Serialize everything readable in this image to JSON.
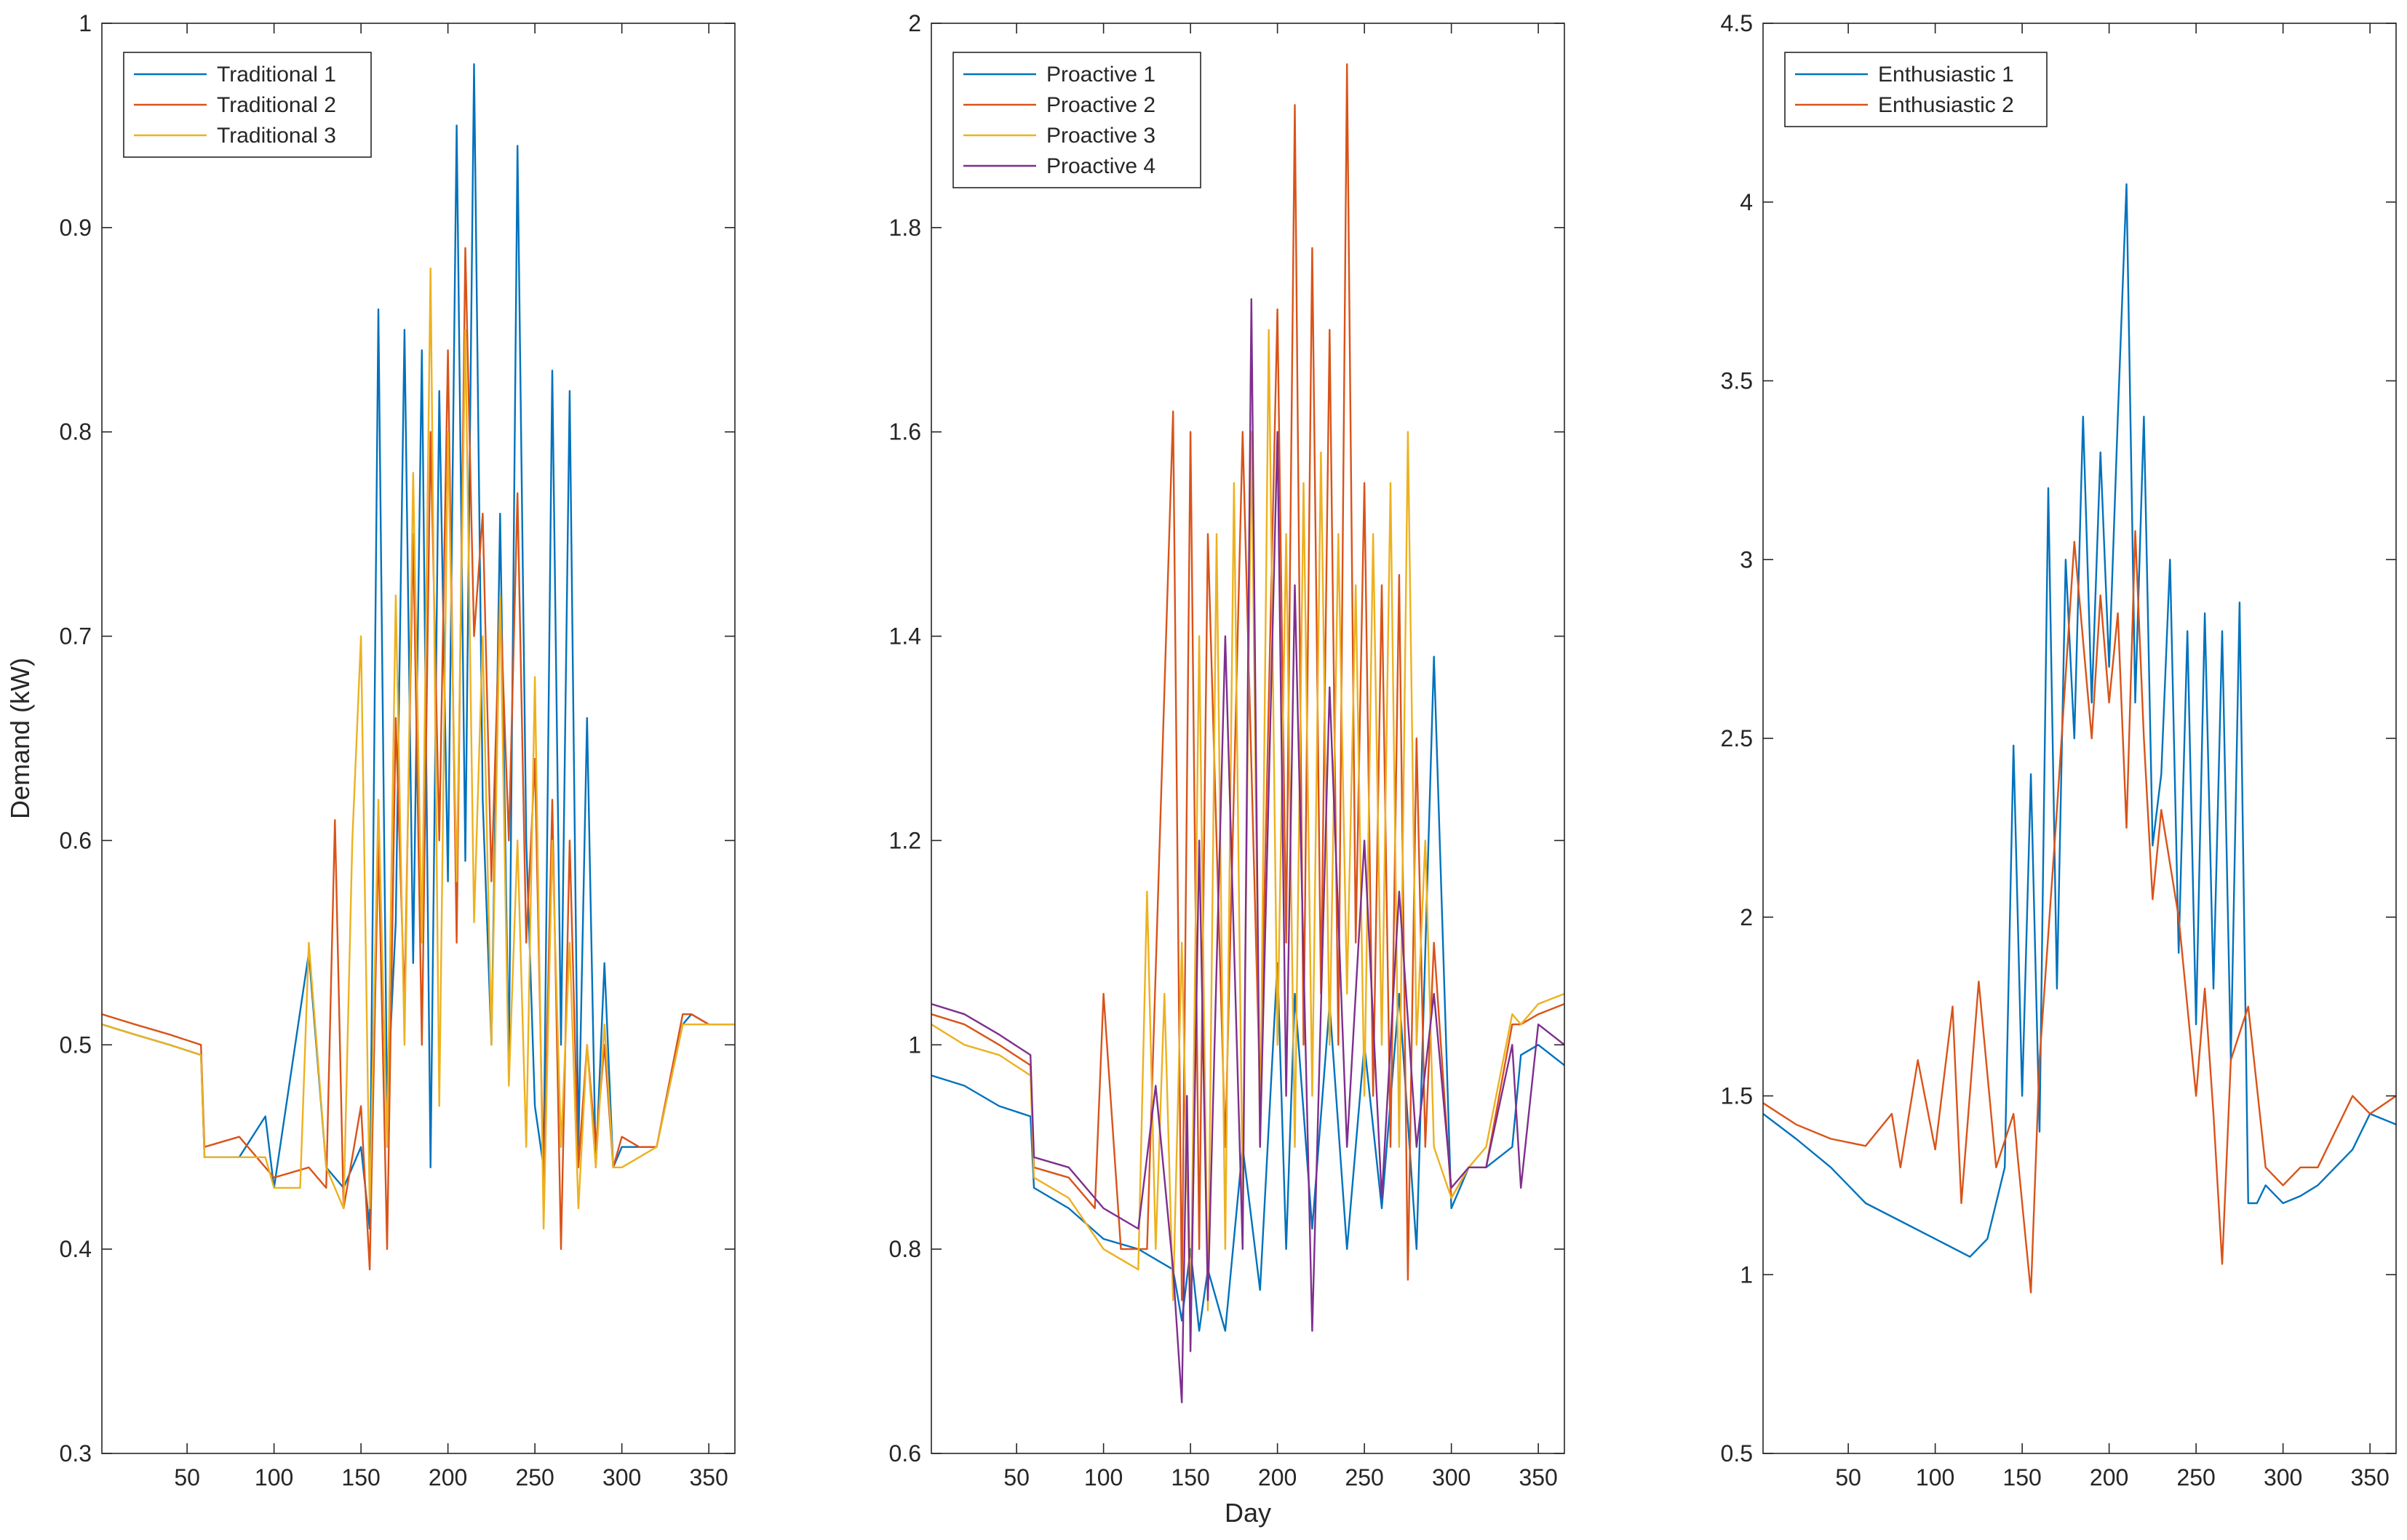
{
  "chart_data": [
    {
      "type": "line",
      "ylabel": "Demand (kW)",
      "xlabel": "",
      "xlim": [
        1,
        365
      ],
      "ylim": [
        0.3,
        1.0
      ],
      "xticks": [
        50,
        100,
        150,
        200,
        250,
        300,
        350
      ],
      "yticks": [
        0.3,
        0.4,
        0.5,
        0.6,
        0.7,
        0.8,
        0.9,
        1.0
      ],
      "ytick_labels": [
        "0.3",
        "0.4",
        "0.5",
        "0.6",
        "0.7",
        "0.8",
        "0.9",
        "1"
      ],
      "legend_position": "top-left",
      "series": [
        {
          "name": "Traditional 1",
          "color": "#0072BD",
          "x": [
            1,
            20,
            40,
            58,
            60,
            80,
            95,
            100,
            120,
            130,
            140,
            150,
            155,
            160,
            165,
            170,
            175,
            180,
            185,
            190,
            195,
            200,
            205,
            210,
            215,
            220,
            225,
            230,
            235,
            240,
            245,
            250,
            255,
            260,
            265,
            270,
            275,
            280,
            285,
            290,
            295,
            300,
            310,
            320,
            335,
            340,
            350,
            365
          ],
          "y": [
            0.51,
            0.505,
            0.5,
            0.495,
            0.445,
            0.445,
            0.465,
            0.43,
            0.545,
            0.44,
            0.43,
            0.45,
            0.41,
            0.86,
            0.47,
            0.56,
            0.85,
            0.54,
            0.84,
            0.44,
            0.82,
            0.58,
            0.95,
            0.59,
            0.98,
            0.62,
            0.5,
            0.76,
            0.49,
            0.94,
            0.6,
            0.47,
            0.44,
            0.83,
            0.5,
            0.82,
            0.45,
            0.66,
            0.44,
            0.54,
            0.44,
            0.45,
            0.45,
            0.45,
            0.51,
            0.515,
            0.51,
            0.51
          ]
        },
        {
          "name": "Traditional 2",
          "color": "#D95319",
          "x": [
            1,
            20,
            40,
            58,
            60,
            80,
            95,
            100,
            120,
            130,
            135,
            140,
            150,
            155,
            160,
            165,
            170,
            175,
            180,
            185,
            190,
            195,
            200,
            205,
            210,
            215,
            220,
            225,
            230,
            235,
            240,
            245,
            250,
            255,
            260,
            265,
            270,
            275,
            280,
            285,
            290,
            295,
            300,
            310,
            320,
            335,
            340,
            350,
            365
          ],
          "y": [
            0.515,
            0.51,
            0.505,
            0.5,
            0.45,
            0.455,
            0.44,
            0.435,
            0.44,
            0.43,
            0.61,
            0.42,
            0.47,
            0.39,
            0.6,
            0.4,
            0.66,
            0.52,
            0.75,
            0.5,
            0.8,
            0.6,
            0.84,
            0.55,
            0.89,
            0.7,
            0.76,
            0.58,
            0.72,
            0.6,
            0.77,
            0.55,
            0.64,
            0.43,
            0.62,
            0.4,
            0.6,
            0.44,
            0.5,
            0.45,
            0.5,
            0.44,
            0.455,
            0.45,
            0.45,
            0.515,
            0.515,
            0.51,
            0.51
          ]
        },
        {
          "name": "Traditional 3",
          "color": "#EDB120",
          "x": [
            1,
            20,
            40,
            58,
            60,
            80,
            95,
            100,
            115,
            120,
            130,
            140,
            145,
            150,
            155,
            160,
            165,
            170,
            175,
            180,
            185,
            190,
            195,
            200,
            205,
            210,
            215,
            220,
            225,
            230,
            235,
            240,
            245,
            250,
            255,
            260,
            265,
            270,
            275,
            280,
            285,
            290,
            295,
            300,
            310,
            320,
            335,
            340,
            350,
            365
          ],
          "y": [
            0.51,
            0.505,
            0.5,
            0.495,
            0.445,
            0.445,
            0.445,
            0.43,
            0.43,
            0.55,
            0.44,
            0.42,
            0.6,
            0.7,
            0.42,
            0.62,
            0.45,
            0.72,
            0.5,
            0.78,
            0.55,
            0.88,
            0.47,
            0.8,
            0.58,
            0.85,
            0.56,
            0.7,
            0.5,
            0.72,
            0.48,
            0.6,
            0.45,
            0.68,
            0.41,
            0.6,
            0.45,
            0.55,
            0.42,
            0.5,
            0.44,
            0.51,
            0.44,
            0.44,
            0.445,
            0.45,
            0.51,
            0.51,
            0.51,
            0.51
          ]
        }
      ]
    },
    {
      "type": "line",
      "ylabel": "",
      "xlabel": "Day",
      "xlim": [
        1,
        365
      ],
      "ylim": [
        0.6,
        2.0
      ],
      "xticks": [
        50,
        100,
        150,
        200,
        250,
        300,
        350
      ],
      "yticks": [
        0.6,
        0.8,
        1.0,
        1.2,
        1.4,
        1.6,
        1.8,
        2.0
      ],
      "ytick_labels": [
        "0.6",
        "0.8",
        "1",
        "1.2",
        "1.4",
        "1.6",
        "1.8",
        "2"
      ],
      "legend_position": "top-left",
      "series": [
        {
          "name": "Proactive 1",
          "color": "#0072BD",
          "x": [
            1,
            20,
            40,
            58,
            60,
            80,
            100,
            120,
            140,
            145,
            150,
            155,
            160,
            170,
            180,
            190,
            200,
            205,
            210,
            220,
            230,
            240,
            250,
            260,
            270,
            280,
            290,
            300,
            310,
            320,
            335,
            340,
            350,
            365
          ],
          "y": [
            0.97,
            0.96,
            0.94,
            0.93,
            0.86,
            0.84,
            0.81,
            0.8,
            0.78,
            0.73,
            0.8,
            0.72,
            0.78,
            0.72,
            0.9,
            0.76,
            1.08,
            0.8,
            1.05,
            0.82,
            1.04,
            0.8,
            1.0,
            0.84,
            1.05,
            0.8,
            1.38,
            0.84,
            0.88,
            0.88,
            0.9,
            0.99,
            1.0,
            0.98
          ]
        },
        {
          "name": "Proactive 2",
          "color": "#D95319",
          "x": [
            1,
            20,
            40,
            58,
            60,
            80,
            95,
            100,
            110,
            125,
            140,
            145,
            150,
            155,
            160,
            170,
            180,
            190,
            200,
            205,
            210,
            215,
            220,
            225,
            230,
            235,
            240,
            245,
            250,
            255,
            260,
            265,
            270,
            275,
            280,
            285,
            290,
            300,
            310,
            320,
            335,
            340,
            350,
            365
          ],
          "y": [
            1.03,
            1.02,
            1.0,
            0.98,
            0.88,
            0.87,
            0.84,
            1.05,
            0.8,
            0.8,
            1.62,
            0.75,
            1.6,
            0.8,
            1.5,
            0.9,
            1.6,
            0.95,
            1.72,
            1.1,
            1.92,
            1.0,
            1.78,
            1.05,
            1.7,
            1.0,
            1.96,
            1.1,
            1.55,
            0.95,
            1.45,
            0.9,
            1.46,
            0.77,
            1.3,
            0.9,
            1.1,
            0.85,
            0.88,
            0.88,
            1.02,
            1.02,
            1.03,
            1.04
          ]
        },
        {
          "name": "Proactive 3",
          "color": "#EDB120",
          "x": [
            1,
            20,
            40,
            58,
            60,
            80,
            100,
            120,
            125,
            130,
            135,
            140,
            145,
            150,
            155,
            160,
            165,
            170,
            175,
            180,
            185,
            190,
            195,
            200,
            205,
            210,
            215,
            220,
            225,
            230,
            235,
            240,
            245,
            250,
            255,
            260,
            265,
            270,
            275,
            280,
            285,
            290,
            300,
            310,
            320,
            335,
            340,
            350,
            365
          ],
          "y": [
            1.02,
            1.0,
            0.99,
            0.97,
            0.87,
            0.85,
            0.8,
            0.78,
            1.15,
            0.8,
            1.05,
            0.75,
            1.1,
            0.72,
            1.4,
            0.74,
            1.5,
            0.8,
            1.55,
            0.85,
            1.6,
            0.9,
            1.7,
            1.0,
            1.5,
            0.9,
            1.55,
            0.95,
            1.58,
            1.0,
            1.5,
            1.05,
            1.45,
            0.95,
            1.5,
            1.0,
            1.55,
            0.9,
            1.6,
            1.0,
            1.2,
            0.9,
            0.85,
            0.88,
            0.9,
            1.03,
            1.02,
            1.04,
            1.05
          ]
        },
        {
          "name": "Proactive 4",
          "color": "#7E2F8E",
          "x": [
            1,
            20,
            40,
            58,
            60,
            80,
            100,
            120,
            130,
            140,
            145,
            148,
            150,
            155,
            160,
            170,
            180,
            185,
            190,
            200,
            205,
            210,
            220,
            230,
            240,
            250,
            260,
            270,
            280,
            290,
            300,
            310,
            320,
            335,
            340,
            350,
            365
          ],
          "y": [
            1.04,
            1.03,
            1.01,
            0.99,
            0.89,
            0.88,
            0.84,
            0.82,
            0.96,
            0.78,
            0.65,
            0.95,
            0.7,
            1.2,
            0.75,
            1.4,
            0.8,
            1.73,
            0.9,
            1.6,
            0.95,
            1.45,
            0.72,
            1.35,
            0.9,
            1.2,
            0.85,
            1.15,
            0.9,
            1.05,
            0.86,
            0.88,
            0.88,
            1.0,
            0.86,
            1.02,
            1.0
          ]
        }
      ]
    },
    {
      "type": "line",
      "ylabel": "",
      "xlabel": "",
      "xlim": [
        1,
        365
      ],
      "ylim": [
        0.5,
        4.5
      ],
      "xticks": [
        50,
        100,
        150,
        200,
        250,
        300,
        350
      ],
      "yticks": [
        0.5,
        1.0,
        1.5,
        2.0,
        2.5,
        3.0,
        3.5,
        4.0,
        4.5
      ],
      "ytick_labels": [
        "0.5",
        "1",
        "1.5",
        "2",
        "2.5",
        "3",
        "3.5",
        "4",
        "4.5"
      ],
      "legend_position": "top-left",
      "series": [
        {
          "name": "Enthusiastic 1",
          "color": "#0072BD",
          "x": [
            1,
            20,
            40,
            60,
            80,
            100,
            120,
            130,
            140,
            145,
            150,
            155,
            160,
            165,
            170,
            175,
            180,
            185,
            190,
            195,
            200,
            205,
            210,
            215,
            220,
            225,
            230,
            235,
            240,
            245,
            250,
            255,
            260,
            265,
            270,
            275,
            280,
            285,
            290,
            300,
            310,
            320,
            340,
            350,
            365
          ],
          "y": [
            1.45,
            1.38,
            1.3,
            1.2,
            1.15,
            1.1,
            1.05,
            1.1,
            1.3,
            2.48,
            1.5,
            2.4,
            1.4,
            3.2,
            1.8,
            3.0,
            2.5,
            3.4,
            2.6,
            3.3,
            2.7,
            3.4,
            4.05,
            2.6,
            3.4,
            2.2,
            2.4,
            3.0,
            1.9,
            2.8,
            1.7,
            2.85,
            1.8,
            2.8,
            1.6,
            2.88,
            1.2,
            1.2,
            1.25,
            1.2,
            1.22,
            1.25,
            1.35,
            1.45,
            1.42
          ]
        },
        {
          "name": "Enthusiastic 2",
          "color": "#D95319",
          "x": [
            1,
            20,
            40,
            60,
            75,
            80,
            90,
            100,
            110,
            115,
            125,
            135,
            145,
            150,
            155,
            160,
            170,
            180,
            190,
            195,
            200,
            205,
            210,
            215,
            220,
            225,
            230,
            240,
            250,
            255,
            260,
            265,
            270,
            280,
            290,
            300,
            310,
            320,
            340,
            350,
            365
          ],
          "y": [
            1.48,
            1.42,
            1.38,
            1.36,
            1.45,
            1.3,
            1.6,
            1.35,
            1.75,
            1.2,
            1.82,
            1.3,
            1.45,
            1.2,
            0.95,
            1.6,
            2.3,
            3.05,
            2.5,
            2.9,
            2.6,
            2.85,
            2.25,
            3.08,
            2.5,
            2.05,
            2.3,
            2.0,
            1.5,
            1.8,
            1.45,
            1.03,
            1.6,
            1.75,
            1.3,
            1.25,
            1.3,
            1.3,
            1.5,
            1.45,
            1.5
          ]
        }
      ]
    }
  ]
}
